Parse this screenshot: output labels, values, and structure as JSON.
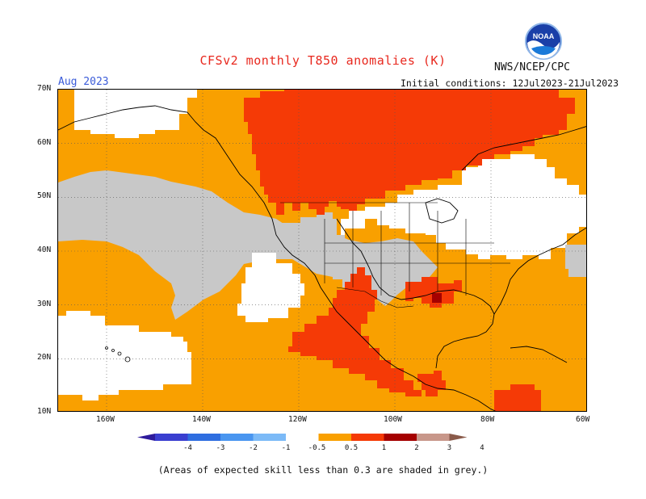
{
  "title": "CFSv2 monthly T850 anomalies (K)",
  "forecast_month": "Aug 2023",
  "agency": "NWS/NCEP/CPC",
  "logo_text": "NOAA",
  "initial_conditions": "Initial conditions: 12Jul2023-21Jul2023",
  "footnote": "(Areas of expected skill less than 0.3 are shaded in grey.)",
  "map": {
    "lat_labels": [
      "70N",
      "60N",
      "50N",
      "40N",
      "30N",
      "20N",
      "10N"
    ],
    "lon_labels": [
      "160W",
      "140W",
      "120W",
      "100W",
      "80W",
      "60W"
    ],
    "colors": {
      "warm_0_5_1": "#f9a000",
      "warm_1_2": "#f53a06",
      "warm_2_3": "#a50000",
      "neutral": "#ffffff",
      "low_skill_grey": "#c8c8c8"
    }
  },
  "colorbar": {
    "tick_labels": [
      "-4",
      "-3",
      "-2",
      "-1",
      "-0.5",
      "0.5",
      "1",
      "2",
      "3",
      "4"
    ],
    "colors": [
      "#2e1b9c",
      "#3a3fd0",
      "#2f6ee0",
      "#4a96f0",
      "#7cbaf7",
      "#ffffff",
      "#f9a000",
      "#f53a06",
      "#a50000",
      "#c8978a",
      "#8a5a4a"
    ]
  }
}
